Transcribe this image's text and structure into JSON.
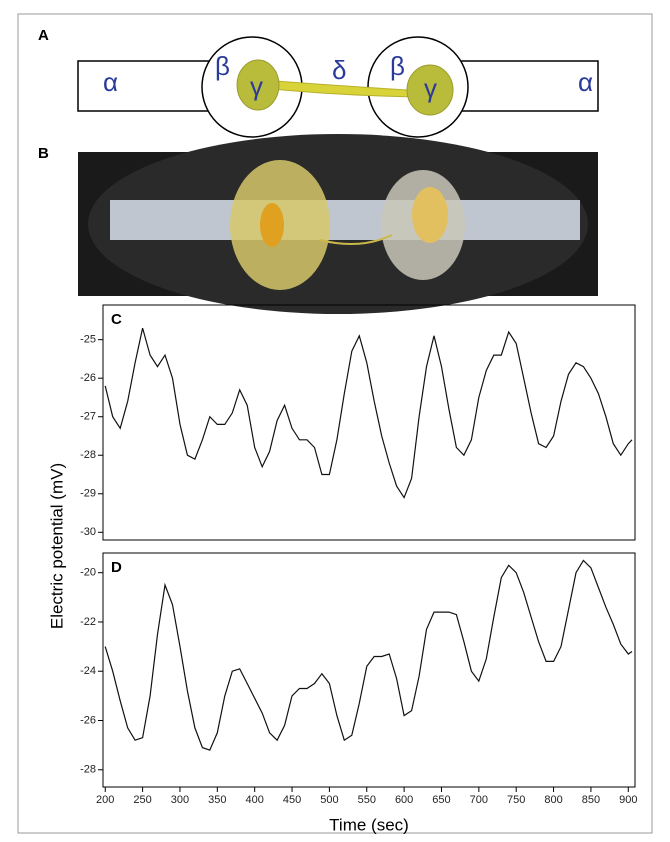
{
  "diagram": {
    "label": "A",
    "left_outer": "α",
    "left_ring": "β",
    "left_core": "γ",
    "bridge": "δ",
    "right_ring": "β",
    "right_core": "γ",
    "right_outer": "α"
  },
  "photo": {
    "label": "B"
  },
  "chart_data": [
    {
      "type": "line",
      "label": "C",
      "ylabel": "Electric potential (mV)",
      "xlim": [
        197,
        909
      ],
      "ylim": [
        -30.2,
        -24.1
      ],
      "yticks": [
        -30,
        -29,
        -28,
        -27,
        -26,
        -25
      ],
      "x": [
        200,
        210,
        220,
        230,
        240,
        250,
        260,
        270,
        280,
        290,
        300,
        310,
        320,
        330,
        340,
        350,
        360,
        370,
        380,
        390,
        400,
        410,
        420,
        430,
        440,
        450,
        460,
        470,
        480,
        490,
        500,
        510,
        520,
        530,
        540,
        550,
        560,
        570,
        580,
        590,
        600,
        610,
        620,
        630,
        640,
        650,
        660,
        670,
        680,
        690,
        700,
        710,
        720,
        730,
        740,
        750,
        760,
        770,
        780,
        790,
        800,
        810,
        820,
        830,
        840,
        850,
        860,
        870,
        880,
        890,
        900,
        905
      ],
      "series": [
        {
          "color": "#111111",
          "values": [
            -26.2,
            -27.0,
            -27.3,
            -26.6,
            -25.6,
            -24.7,
            -25.4,
            -25.7,
            -25.4,
            -26.0,
            -27.2,
            -28.0,
            -28.1,
            -27.6,
            -27.0,
            -27.2,
            -27.2,
            -26.9,
            -26.3,
            -26.7,
            -27.8,
            -28.3,
            -27.9,
            -27.1,
            -26.7,
            -27.3,
            -27.6,
            -27.6,
            -27.8,
            -28.5,
            -28.5,
            -27.6,
            -26.4,
            -25.3,
            -24.9,
            -25.6,
            -26.6,
            -27.5,
            -28.2,
            -28.8,
            -29.1,
            -28.6,
            -27.0,
            -25.7,
            -24.9,
            -25.7,
            -26.8,
            -27.8,
            -28.0,
            -27.6,
            -26.5,
            -25.8,
            -25.4,
            -25.4,
            -24.8,
            -25.1,
            -26.0,
            -26.9,
            -27.7,
            -27.8,
            -27.5,
            -26.6,
            -25.9,
            -25.6,
            -25.7,
            -26.0,
            -26.4,
            -27.0,
            -27.7,
            -28.0,
            -27.7,
            -27.6
          ]
        }
      ]
    },
    {
      "type": "line",
      "label": "D",
      "xlabel": "Time (sec)",
      "xlim": [
        197,
        909
      ],
      "ylim": [
        -28.7,
        -19.2
      ],
      "yticks": [
        -28,
        -26,
        -24,
        -22,
        -20
      ],
      "xticks": [
        200,
        250,
        300,
        350,
        400,
        450,
        500,
        550,
        600,
        650,
        700,
        750,
        800,
        850,
        900
      ],
      "x": [
        200,
        210,
        220,
        230,
        240,
        250,
        260,
        270,
        280,
        290,
        300,
        310,
        320,
        330,
        340,
        350,
        360,
        370,
        380,
        390,
        400,
        410,
        420,
        430,
        440,
        450,
        460,
        470,
        480,
        490,
        500,
        510,
        520,
        530,
        540,
        550,
        560,
        570,
        580,
        590,
        600,
        610,
        620,
        630,
        640,
        650,
        660,
        670,
        680,
        690,
        700,
        710,
        720,
        730,
        740,
        750,
        760,
        770,
        780,
        790,
        800,
        810,
        820,
        830,
        840,
        850,
        860,
        870,
        880,
        890,
        900,
        905
      ],
      "series": [
        {
          "color": "#111111",
          "values": [
            -23.0,
            -24.0,
            -25.2,
            -26.3,
            -26.8,
            -26.7,
            -25.0,
            -22.5,
            -20.5,
            -21.3,
            -23.0,
            -24.8,
            -26.3,
            -27.1,
            -27.2,
            -26.5,
            -25.0,
            -24.0,
            -23.9,
            -24.5,
            -25.1,
            -25.7,
            -26.5,
            -26.8,
            -26.2,
            -25.0,
            -24.7,
            -24.7,
            -24.5,
            -24.1,
            -24.5,
            -25.8,
            -26.8,
            -26.6,
            -25.3,
            -23.8,
            -23.4,
            -23.4,
            -23.3,
            -24.3,
            -25.8,
            -25.6,
            -24.2,
            -22.3,
            -21.6,
            -21.6,
            -21.6,
            -21.7,
            -22.8,
            -24.0,
            -24.4,
            -23.5,
            -21.8,
            -20.2,
            -19.7,
            -20.0,
            -20.8,
            -21.8,
            -22.8,
            -23.6,
            -23.6,
            -23.0,
            -21.5,
            -20.0,
            -19.5,
            -19.8,
            -20.6,
            -21.4,
            -22.1,
            -22.9,
            -23.3,
            -23.2
          ]
        }
      ]
    }
  ]
}
